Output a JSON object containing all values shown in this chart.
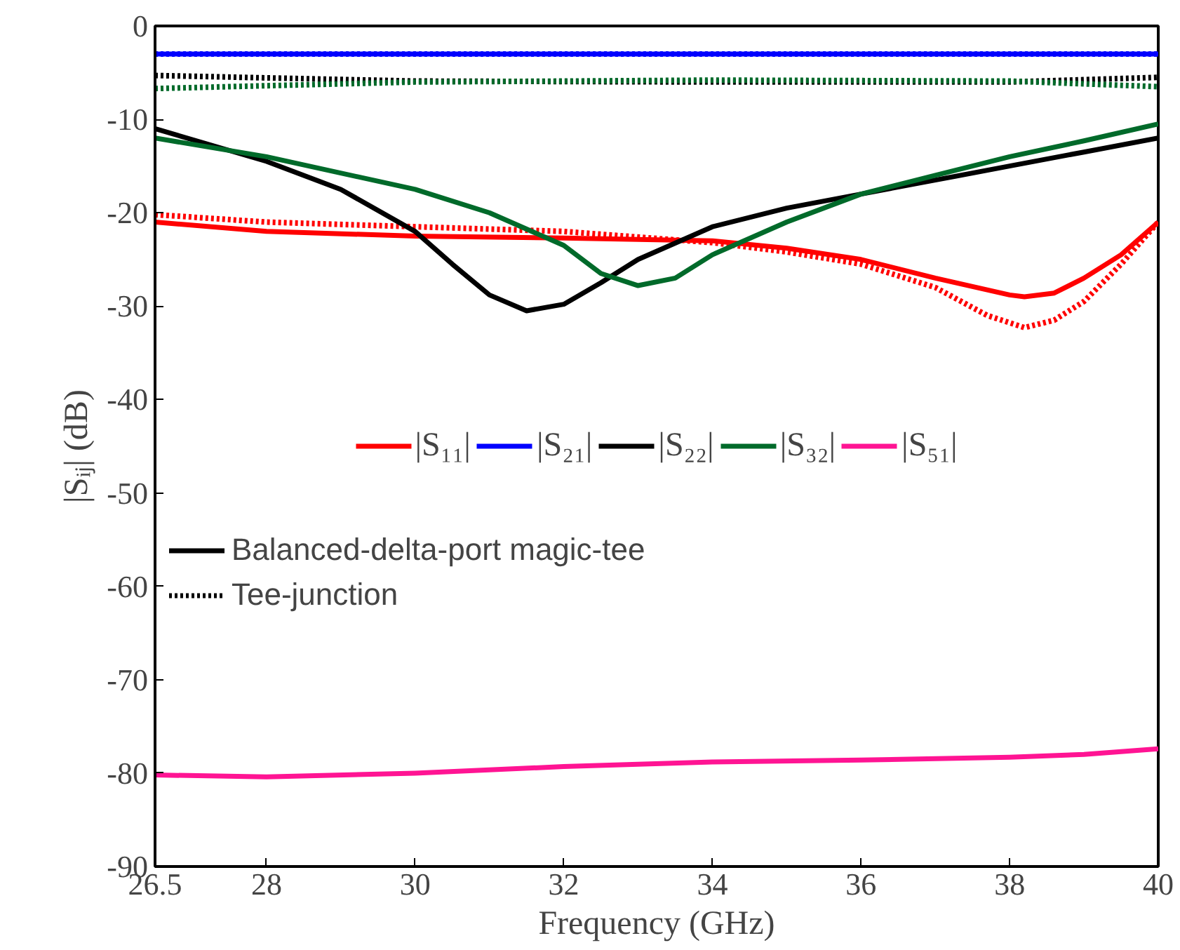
{
  "chart_data": {
    "type": "line",
    "xlabel": "Frequency (GHz)",
    "ylabel": "|Sᵢⱼ| (dB)",
    "xlim": [
      26.5,
      40
    ],
    "ylim": [
      -90,
      0
    ],
    "xticks": [
      26.5,
      28,
      30,
      32,
      34,
      36,
      38,
      40
    ],
    "yticks": [
      -90,
      -80,
      -70,
      -60,
      -50,
      -40,
      -30,
      -20,
      -10,
      0
    ],
    "grid": false,
    "legend": "center",
    "marker": "none",
    "annotations": [
      "Balanced-delta-port magic-tee",
      "Tee-junction"
    ],
    "series": [
      {
        "name": "|S₁₁|",
        "color": "#ff0000",
        "line_style": "solid",
        "x": [
          26.5,
          28,
          30,
          32,
          34,
          35,
          36,
          37,
          38,
          38.2,
          38.6,
          39,
          39.5,
          40
        ],
        "values": [
          -21,
          -22,
          -22.5,
          -22.7,
          -23,
          -23.8,
          -25,
          -27,
          -28.8,
          -29,
          -28.6,
          -27,
          -24.5,
          -21
        ]
      },
      {
        "color": "#ff0000",
        "line_style": "dotted",
        "x": [
          26.5,
          28,
          30,
          32,
          34,
          35,
          36,
          37,
          37.7,
          38.2,
          38.6,
          39,
          39.5,
          40
        ],
        "values": [
          -20.2,
          -21,
          -21.5,
          -22,
          -23.2,
          -24.2,
          -25.5,
          -28,
          -31,
          -32.3,
          -31.5,
          -29.5,
          -25.5,
          -21
        ]
      },
      {
        "name": "|S₂₁|",
        "color": "#0000ff",
        "line_style": "solid",
        "x": [
          26.5,
          40
        ],
        "values": [
          -3,
          -3
        ]
      },
      {
        "color": "#0000ff",
        "line_style": "dotted",
        "x": [
          26.5,
          40
        ],
        "values": [
          -3,
          -3
        ]
      },
      {
        "name": "|S₂₂|",
        "color": "#000000",
        "line_style": "solid",
        "x": [
          26.5,
          28,
          29,
          30,
          30.5,
          31,
          31.5,
          32,
          32.5,
          33,
          34,
          35,
          36,
          37,
          38,
          39,
          40
        ],
        "values": [
          -11,
          -14.5,
          -17.5,
          -22,
          -25.5,
          -28.8,
          -30.5,
          -29.8,
          -27.5,
          -25,
          -21.5,
          -19.5,
          -18,
          -16.5,
          -15,
          -13.5,
          -12
        ]
      },
      {
        "color": "#000000",
        "line_style": "dotted",
        "x": [
          26.5,
          30,
          34,
          38,
          40
        ],
        "values": [
          -5.3,
          -5.9,
          -6,
          -6,
          -5.5
        ]
      },
      {
        "name": "|S₃₂|",
        "color": "#006a2a",
        "line_style": "solid",
        "x": [
          26.5,
          28,
          30,
          31,
          32,
          32.5,
          33,
          33.5,
          34,
          35,
          36,
          37,
          38,
          39,
          40
        ],
        "values": [
          -12,
          -14,
          -17.5,
          -20,
          -23.5,
          -26.5,
          -27.8,
          -27,
          -24.5,
          -21,
          -18,
          -16,
          -14,
          -12.3,
          -10.5
        ]
      },
      {
        "color": "#006a2a",
        "line_style": "dotted",
        "x": [
          26.5,
          30,
          34,
          38,
          40
        ],
        "values": [
          -6.7,
          -6,
          -5.8,
          -5.9,
          -6.5
        ]
      },
      {
        "name": "|S₅₁|",
        "color": "#ff1493",
        "line_style": "solid",
        "x": [
          26.5,
          28,
          30,
          32,
          34,
          36,
          38,
          39,
          40
        ],
        "values": [
          -80.2,
          -80.4,
          -80,
          -79.3,
          -78.8,
          -78.6,
          -78.3,
          -78,
          -77.4
        ]
      }
    ]
  }
}
